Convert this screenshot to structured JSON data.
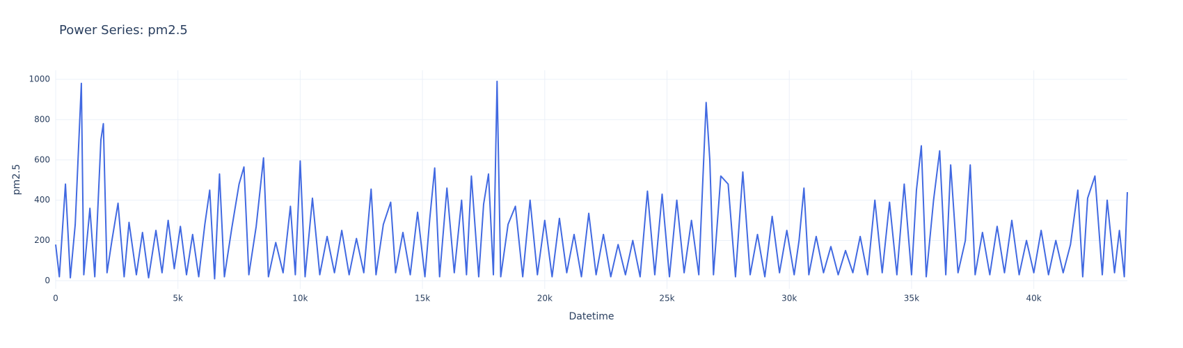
{
  "chart_data": {
    "type": "line",
    "title": "Power Series: pm2.5",
    "x_label": "Datetime",
    "y_label": "pm2.5",
    "grid": true,
    "xlim": [
      0,
      43824
    ],
    "ylim": [
      -40,
      1045
    ],
    "xticks": [
      0,
      {
        "value": 5000,
        "label": "5k"
      },
      {
        "value": 10000,
        "label": "10k"
      },
      {
        "value": 15000,
        "label": "15k"
      },
      {
        "value": 20000,
        "label": "20k"
      },
      {
        "value": 25000,
        "label": "25k"
      },
      {
        "value": 30000,
        "label": "30k"
      },
      {
        "value": 35000,
        "label": "35k"
      },
      {
        "value": 40000,
        "label": "40k"
      }
    ],
    "yticks": [
      0,
      200,
      400,
      600,
      800,
      1000
    ],
    "x": [
      0,
      150,
      400,
      600,
      800,
      1050,
      1150,
      1400,
      1600,
      1850,
      1950,
      2100,
      2300,
      2550,
      2800,
      3000,
      3300,
      3550,
      3800,
      4100,
      4350,
      4600,
      4850,
      5100,
      5350,
      5600,
      5850,
      6100,
      6300,
      6500,
      6700,
      6900,
      7200,
      7500,
      7700,
      7900,
      8200,
      8500,
      8700,
      9000,
      9300,
      9600,
      9800,
      10000,
      10200,
      10500,
      10800,
      11100,
      11400,
      11700,
      12000,
      12300,
      12600,
      12900,
      13100,
      13400,
      13700,
      13900,
      14200,
      14500,
      14800,
      15100,
      15300,
      15500,
      15700,
      16000,
      16300,
      16600,
      16800,
      17000,
      17300,
      17500,
      17700,
      17900,
      18050,
      18200,
      18500,
      18800,
      19100,
      19400,
      19700,
      20000,
      20300,
      20600,
      20900,
      21200,
      21500,
      21800,
      22100,
      22400,
      22700,
      23000,
      23300,
      23600,
      23900,
      24200,
      24500,
      24800,
      25100,
      25400,
      25700,
      26000,
      26300,
      26600,
      26750,
      26900,
      27200,
      27500,
      27800,
      28100,
      28400,
      28700,
      29000,
      29300,
      29600,
      29900,
      30200,
      30400,
      30600,
      30800,
      31100,
      31400,
      31700,
      32000,
      32300,
      32600,
      32900,
      33200,
      33500,
      33800,
      34100,
      34400,
      34700,
      35000,
      35200,
      35400,
      35600,
      35900,
      36150,
      36400,
      36600,
      36900,
      37200,
      37400,
      37600,
      37900,
      38200,
      38500,
      38800,
      39100,
      39400,
      39700,
      40000,
      40300,
      40600,
      40900,
      41200,
      41500,
      41800,
      42000,
      42200,
      42500,
      42800,
      43000,
      43300,
      43500,
      43700,
      43824
    ],
    "series": [
      {
        "name": "pm2.5",
        "color": "#4169e1",
        "values": [
          180,
          20,
          480,
          15,
          280,
          980,
          30,
          360,
          20,
          700,
          780,
          40,
          200,
          385,
          20,
          290,
          30,
          240,
          15,
          250,
          40,
          300,
          60,
          270,
          30,
          230,
          20,
          280,
          450,
          10,
          530,
          20,
          260,
          480,
          565,
          30,
          270,
          610,
          20,
          190,
          40,
          370,
          30,
          595,
          20,
          410,
          30,
          220,
          40,
          250,
          30,
          210,
          40,
          455,
          30,
          280,
          390,
          40,
          240,
          30,
          340,
          20,
          310,
          560,
          20,
          460,
          40,
          400,
          30,
          520,
          20,
          380,
          530,
          30,
          990,
          20,
          280,
          370,
          20,
          400,
          30,
          300,
          20,
          310,
          40,
          230,
          20,
          335,
          30,
          230,
          20,
          180,
          30,
          200,
          20,
          445,
          30,
          430,
          20,
          400,
          40,
          300,
          30,
          885,
          600,
          30,
          520,
          480,
          20,
          540,
          30,
          230,
          20,
          320,
          40,
          250,
          30,
          200,
          460,
          30,
          220,
          40,
          170,
          30,
          150,
          40,
          220,
          30,
          400,
          40,
          390,
          30,
          480,
          30,
          450,
          670,
          20,
          400,
          645,
          30,
          575,
          40,
          200,
          575,
          30,
          240,
          30,
          270,
          40,
          300,
          30,
          200,
          40,
          250,
          30,
          200,
          40,
          180,
          450,
          20,
          410,
          520,
          30,
          400,
          40,
          250,
          20,
          440
        ]
      }
    ]
  }
}
